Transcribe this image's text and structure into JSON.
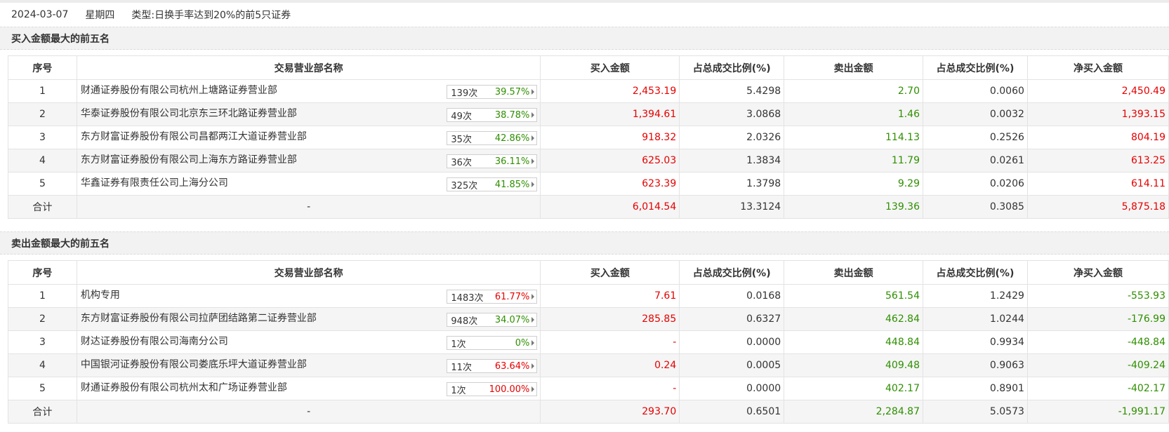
{
  "info": {
    "date": "2024-03-07",
    "weekday": "星期四",
    "type_label": "类型:",
    "type_value": "日换手率达到20%的前5只证券"
  },
  "sections": [
    {
      "title": "买入金额最大的前五名",
      "headers": [
        "序号",
        "交易营业部名称",
        "买入金额",
        "占总成交比例(%)",
        "卖出金额",
        "占总成交比例(%)",
        "净买入金额"
      ],
      "rows": [
        {
          "idx": "1",
          "name": "财通证券股份有限公司杭州上塘路证券营业部",
          "count": "139次",
          "pct": "39.57%",
          "pct_color": "green",
          "buy": "2,453.19",
          "buy_ratio": "5.4298",
          "sell": "2.70",
          "sell_ratio": "0.0060",
          "net": "2,450.49",
          "net_color": "red"
        },
        {
          "idx": "2",
          "name": "华泰证券股份有限公司北京东三环北路证券营业部",
          "count": "49次",
          "pct": "38.78%",
          "pct_color": "green",
          "buy": "1,394.61",
          "buy_ratio": "3.0868",
          "sell": "1.46",
          "sell_ratio": "0.0032",
          "net": "1,393.15",
          "net_color": "red"
        },
        {
          "idx": "3",
          "name": "东方财富证券股份有限公司昌都两江大道证券营业部",
          "count": "35次",
          "pct": "42.86%",
          "pct_color": "green",
          "buy": "918.32",
          "buy_ratio": "2.0326",
          "sell": "114.13",
          "sell_ratio": "0.2526",
          "net": "804.19",
          "net_color": "red"
        },
        {
          "idx": "4",
          "name": "东方财富证券股份有限公司上海东方路证券营业部",
          "count": "36次",
          "pct": "36.11%",
          "pct_color": "green",
          "buy": "625.03",
          "buy_ratio": "1.3834",
          "sell": "11.79",
          "sell_ratio": "0.0261",
          "net": "613.25",
          "net_color": "red"
        },
        {
          "idx": "5",
          "name": "华鑫证券有限责任公司上海分公司",
          "count": "325次",
          "pct": "41.85%",
          "pct_color": "green",
          "buy": "623.39",
          "buy_ratio": "1.3798",
          "sell": "9.29",
          "sell_ratio": "0.0206",
          "net": "614.11",
          "net_color": "red"
        }
      ],
      "total": {
        "label": "合计",
        "name": "-",
        "buy": "6,014.54",
        "buy_ratio": "13.3124",
        "sell": "139.36",
        "sell_ratio": "0.3085",
        "net": "5,875.18",
        "net_color": "red"
      }
    },
    {
      "title": "卖出金额最大的前五名",
      "headers": [
        "序号",
        "交易营业部名称",
        "买入金额",
        "占总成交比例(%)",
        "卖出金额",
        "占总成交比例(%)",
        "净买入金额"
      ],
      "rows": [
        {
          "idx": "1",
          "name": "机构专用",
          "count": "1483次",
          "pct": "61.77%",
          "pct_color": "red",
          "buy": "7.61",
          "buy_ratio": "0.0168",
          "sell": "561.54",
          "sell_ratio": "1.2429",
          "net": "-553.93",
          "net_color": "green"
        },
        {
          "idx": "2",
          "name": "东方财富证券股份有限公司拉萨团结路第二证券营业部",
          "count": "948次",
          "pct": "34.07%",
          "pct_color": "green",
          "buy": "285.85",
          "buy_ratio": "0.6327",
          "sell": "462.84",
          "sell_ratio": "1.0244",
          "net": "-176.99",
          "net_color": "green"
        },
        {
          "idx": "3",
          "name": "财达证券股份有限公司海南分公司",
          "count": "1次",
          "pct": "0%",
          "pct_color": "green",
          "buy": "-",
          "buy_ratio": "0.0000",
          "sell": "448.84",
          "sell_ratio": "0.9934",
          "net": "-448.84",
          "net_color": "green"
        },
        {
          "idx": "4",
          "name": "中国银河证券股份有限公司娄底乐坪大道证券营业部",
          "count": "11次",
          "pct": "63.64%",
          "pct_color": "red",
          "buy": "0.24",
          "buy_ratio": "0.0005",
          "sell": "409.48",
          "sell_ratio": "0.9063",
          "net": "-409.24",
          "net_color": "green"
        },
        {
          "idx": "5",
          "name": "财通证券股份有限公司杭州太和广场证券营业部",
          "count": "1次",
          "pct": "100.00%",
          "pct_color": "red",
          "buy": "-",
          "buy_ratio": "0.0000",
          "sell": "402.17",
          "sell_ratio": "0.8901",
          "net": "-402.17",
          "net_color": "green"
        }
      ],
      "total": {
        "label": "合计",
        "name": "-",
        "buy": "293.70",
        "buy_ratio": "0.6501",
        "sell": "2,284.87",
        "sell_ratio": "5.0573",
        "net": "-1,991.17",
        "net_color": "green"
      }
    }
  ],
  "colors": {
    "red": "#e60000",
    "green": "#2f8f00",
    "header_bg": "#f2f2f2",
    "alt_row_bg": "#f5f5f5"
  },
  "icons": {
    "badge_arrow": "caret-right-icon"
  }
}
